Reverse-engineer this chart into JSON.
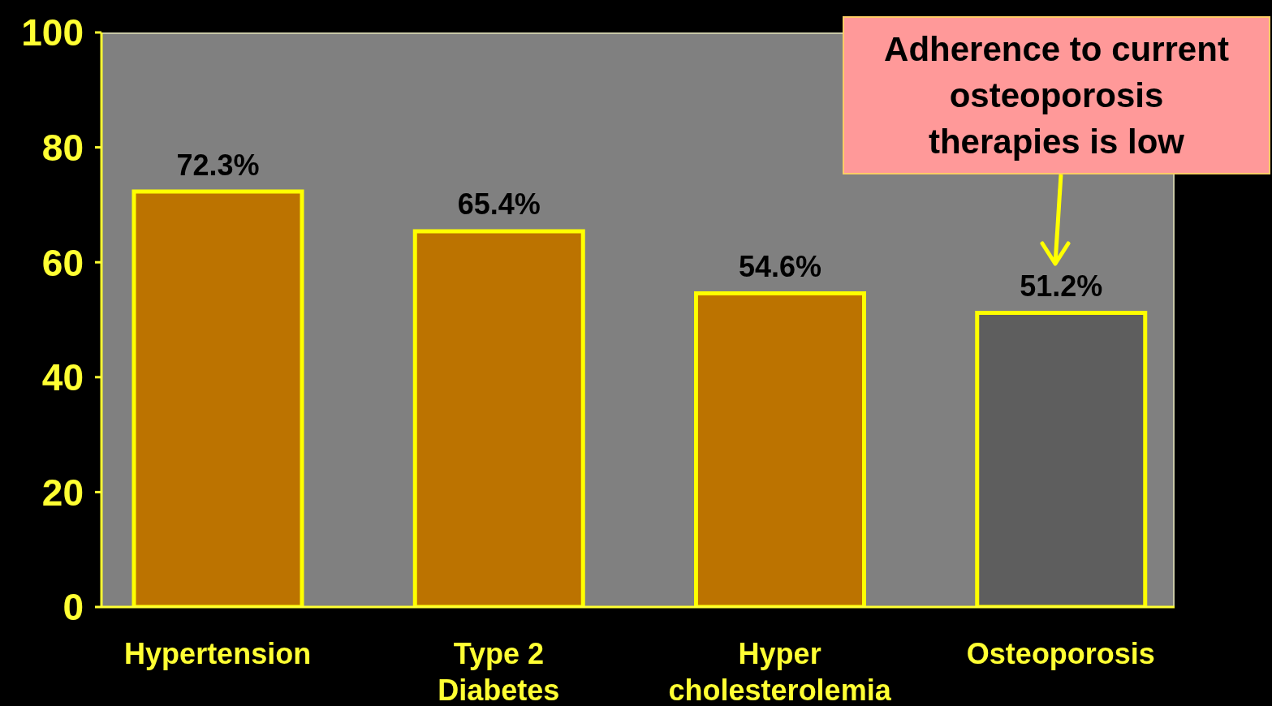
{
  "chart_data": {
    "type": "bar",
    "categories": [
      "Hypertension",
      "Type 2\nDiabetes",
      "Hyper\ncholesterolemia",
      "Osteoporosis"
    ],
    "values": [
      72.3,
      65.4,
      54.6,
      51.2
    ],
    "colors": [
      "#bc7300",
      "#bc7300",
      "#bc7300",
      "#5e5e5e"
    ],
    "value_labels": [
      "72.3%",
      "65.4%",
      "54.6%",
      "51.2%"
    ],
    "ylim": [
      0,
      100
    ],
    "yticks": [
      0,
      20,
      40,
      60,
      80,
      100
    ],
    "annotations": [
      "Adherence to current\nosteoporosis\ntherapies is low"
    ]
  }
}
